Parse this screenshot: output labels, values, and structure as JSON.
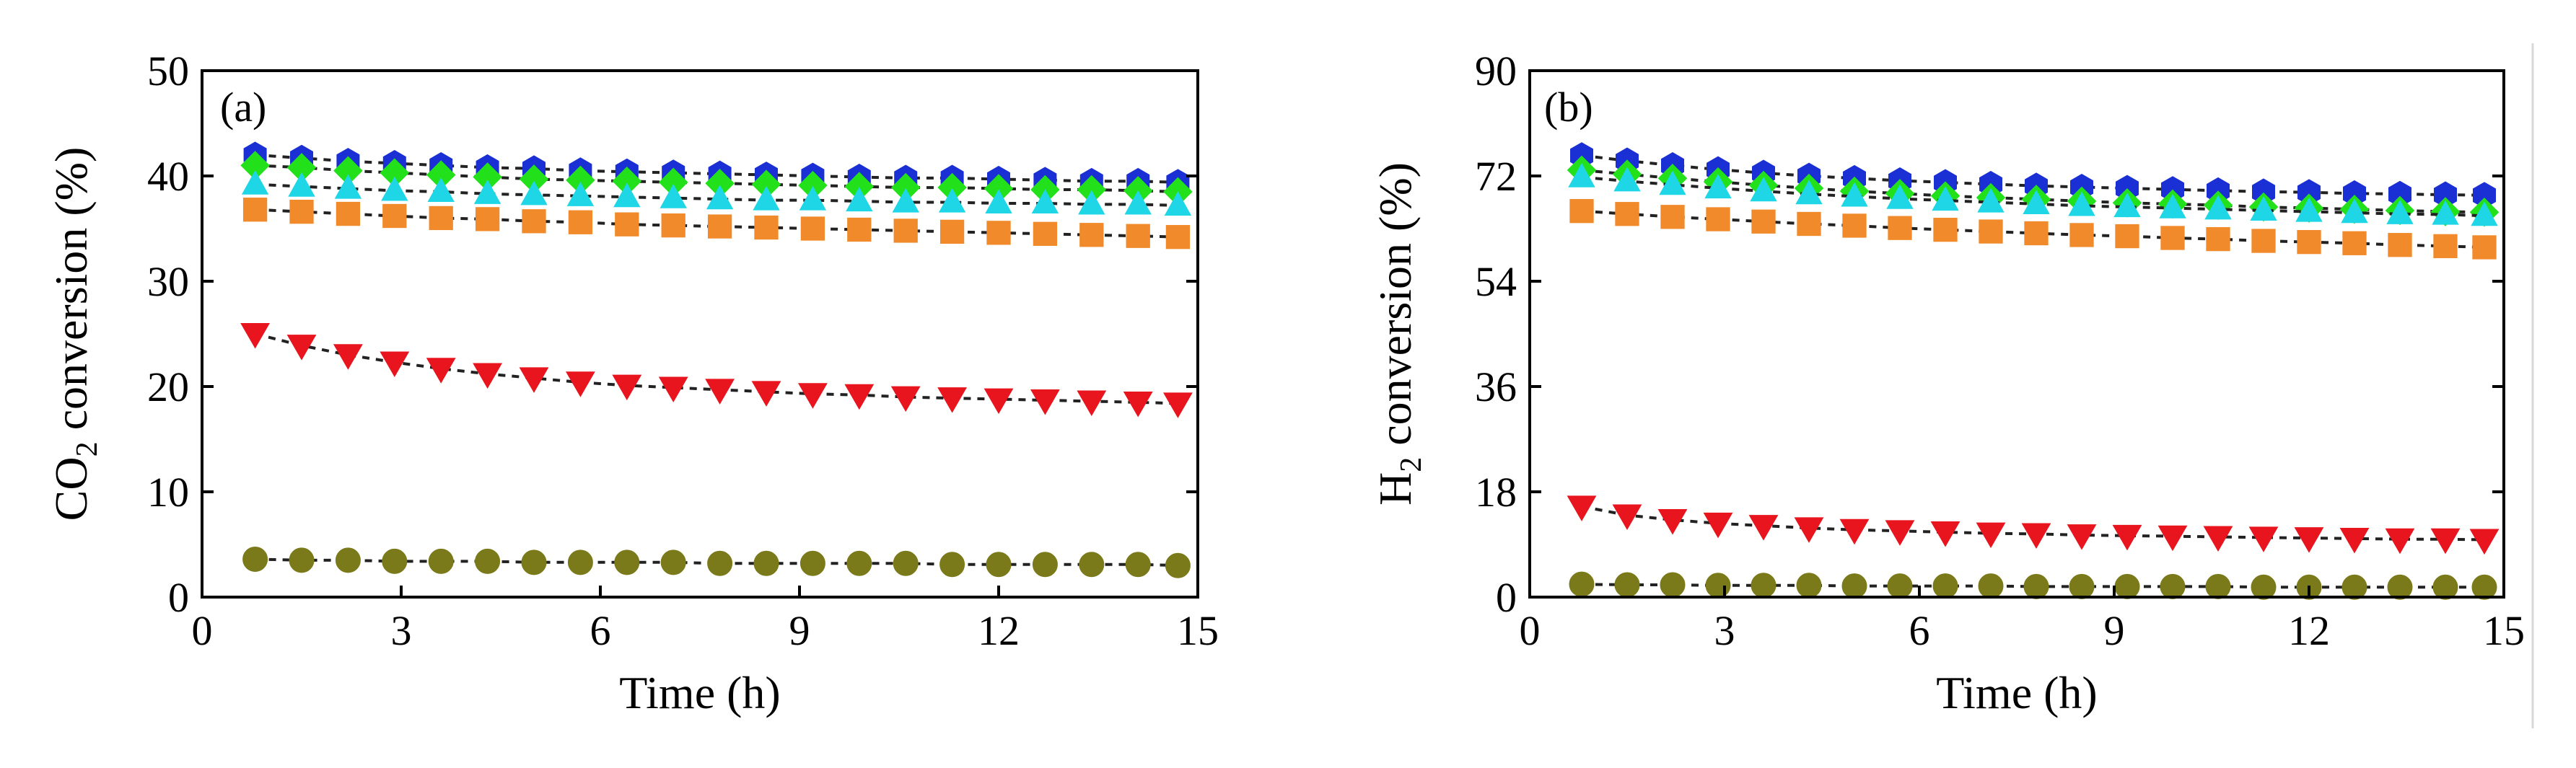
{
  "chart_data": [
    {
      "type": "scatter",
      "panel_label": "(a)",
      "xlabel": "Time (h)",
      "ylabel_main": "CO",
      "ylabel_sub": "2",
      "ylabel_rest": " conversion (%)",
      "xlim": [
        0,
        15
      ],
      "ylim": [
        0,
        50
      ],
      "xticks": [
        0,
        3,
        6,
        9,
        12,
        15
      ],
      "yticks": [
        0,
        10,
        20,
        30,
        40,
        50
      ],
      "xtick_labels": [
        "0",
        "3",
        "6",
        "9",
        "12",
        "15"
      ],
      "ytick_labels": [
        "0",
        "10",
        "20",
        "30",
        "40",
        "50"
      ],
      "x": [
        0.8,
        1.5,
        2.2,
        2.9,
        3.6,
        4.3,
        5.0,
        5.7,
        6.4,
        7.1,
        7.8,
        8.5,
        9.2,
        9.9,
        10.6,
        11.3,
        12.0,
        12.7,
        13.4,
        14.1,
        14.7
      ],
      "series": [
        {
          "name": "series-blue-hexagon",
          "marker": "hexagon",
          "color": "#1a2fd4",
          "values": [
            42.0,
            41.7,
            41.4,
            41.2,
            41.0,
            40.8,
            40.7,
            40.5,
            40.4,
            40.3,
            40.2,
            40.1,
            40.0,
            39.9,
            39.8,
            39.8,
            39.7,
            39.6,
            39.5,
            39.5,
            39.4
          ]
        },
        {
          "name": "series-green-diamond",
          "marker": "diamond",
          "color": "#22e01a",
          "values": [
            41.0,
            40.8,
            40.5,
            40.3,
            40.1,
            39.9,
            39.7,
            39.6,
            39.5,
            39.4,
            39.3,
            39.2,
            39.1,
            39.0,
            38.9,
            38.9,
            38.8,
            38.7,
            38.7,
            38.6,
            38.5
          ]
        },
        {
          "name": "series-cyan-triangle",
          "marker": "triangle-up",
          "color": "#1fd6e6",
          "values": [
            39.2,
            39.0,
            38.8,
            38.6,
            38.5,
            38.3,
            38.2,
            38.1,
            38.0,
            37.9,
            37.8,
            37.7,
            37.7,
            37.6,
            37.5,
            37.5,
            37.4,
            37.4,
            37.3,
            37.3,
            37.2
          ]
        },
        {
          "name": "series-orange-square",
          "marker": "square",
          "color": "#f08a2a",
          "values": [
            36.8,
            36.6,
            36.4,
            36.2,
            36.0,
            35.9,
            35.7,
            35.6,
            35.4,
            35.3,
            35.2,
            35.1,
            35.0,
            34.9,
            34.8,
            34.7,
            34.6,
            34.5,
            34.4,
            34.3,
            34.2
          ]
        },
        {
          "name": "series-red-triangle-down",
          "marker": "triangle-down",
          "color": "#e8141e",
          "values": [
            25.0,
            23.9,
            23.0,
            22.3,
            21.7,
            21.2,
            20.8,
            20.4,
            20.1,
            19.9,
            19.7,
            19.5,
            19.3,
            19.2,
            19.0,
            18.9,
            18.8,
            18.7,
            18.6,
            18.5,
            18.4
          ]
        },
        {
          "name": "series-olive-circle",
          "marker": "circle",
          "color": "#7a7a1a",
          "values": [
            3.6,
            3.5,
            3.5,
            3.4,
            3.4,
            3.4,
            3.3,
            3.3,
            3.3,
            3.3,
            3.2,
            3.2,
            3.2,
            3.2,
            3.2,
            3.1,
            3.1,
            3.1,
            3.1,
            3.1,
            3.0
          ]
        }
      ]
    },
    {
      "type": "scatter",
      "panel_label": "(b)",
      "xlabel": "Time (h)",
      "ylabel_main": "H",
      "ylabel_sub": "2",
      "ylabel_rest": " conversion (%)",
      "xlim": [
        0,
        15
      ],
      "ylim": [
        0,
        90
      ],
      "xticks": [
        0,
        3,
        6,
        9,
        12,
        15
      ],
      "yticks": [
        0,
        18,
        36,
        54,
        72,
        90
      ],
      "xtick_labels": [
        "0",
        "3",
        "6",
        "9",
        "12",
        "15"
      ],
      "ytick_labels": [
        "0",
        "18",
        "36",
        "54",
        "72",
        "90"
      ],
      "x": [
        0.8,
        1.5,
        2.2,
        2.9,
        3.6,
        4.3,
        5.0,
        5.7,
        6.4,
        7.1,
        7.8,
        8.5,
        9.2,
        9.9,
        10.6,
        11.3,
        12.0,
        12.7,
        13.4,
        14.1,
        14.7
      ],
      "series": [
        {
          "name": "series-blue-hexagon",
          "marker": "hexagon",
          "color": "#1a2fd4",
          "values": [
            75.5,
            74.6,
            73.8,
            73.1,
            72.5,
            72.0,
            71.6,
            71.2,
            70.9,
            70.6,
            70.3,
            70.1,
            69.9,
            69.7,
            69.5,
            69.3,
            69.2,
            69.0,
            68.9,
            68.8,
            68.7
          ]
        },
        {
          "name": "series-green-diamond",
          "marker": "diamond",
          "color": "#22e01a",
          "values": [
            73.0,
            72.3,
            71.6,
            71.0,
            70.4,
            69.9,
            69.4,
            69.0,
            68.6,
            68.3,
            68.0,
            67.7,
            67.4,
            67.2,
            67.0,
            66.7,
            66.5,
            66.3,
            66.1,
            65.9,
            65.8
          ]
        },
        {
          "name": "series-cyan-triangle",
          "marker": "triangle-up",
          "color": "#1fd6e6",
          "values": [
            71.8,
            71.1,
            70.5,
            69.9,
            69.4,
            68.9,
            68.5,
            68.1,
            67.8,
            67.5,
            67.2,
            66.9,
            66.7,
            66.5,
            66.3,
            66.1,
            65.9,
            65.7,
            65.5,
            65.4,
            65.2
          ]
        },
        {
          "name": "series-orange-square",
          "marker": "square",
          "color": "#f08a2a",
          "values": [
            66.0,
            65.5,
            65.0,
            64.6,
            64.2,
            63.8,
            63.5,
            63.1,
            62.8,
            62.5,
            62.2,
            61.9,
            61.7,
            61.4,
            61.2,
            60.9,
            60.7,
            60.5,
            60.2,
            60.0,
            59.8
          ]
        },
        {
          "name": "series-red-triangle-down",
          "marker": "triangle-down",
          "color": "#e8141e",
          "values": [
            15.5,
            14.0,
            13.2,
            12.6,
            12.2,
            11.8,
            11.5,
            11.3,
            11.1,
            10.9,
            10.8,
            10.6,
            10.5,
            10.4,
            10.3,
            10.2,
            10.1,
            10.0,
            9.9,
            9.9,
            9.8
          ]
        },
        {
          "name": "series-olive-circle",
          "marker": "circle",
          "color": "#7a7a1a",
          "values": [
            2.2,
            2.1,
            2.1,
            2.0,
            2.0,
            2.0,
            1.9,
            1.9,
            1.9,
            1.9,
            1.8,
            1.8,
            1.8,
            1.8,
            1.8,
            1.7,
            1.7,
            1.7,
            1.7,
            1.7,
            1.7
          ]
        }
      ]
    }
  ]
}
